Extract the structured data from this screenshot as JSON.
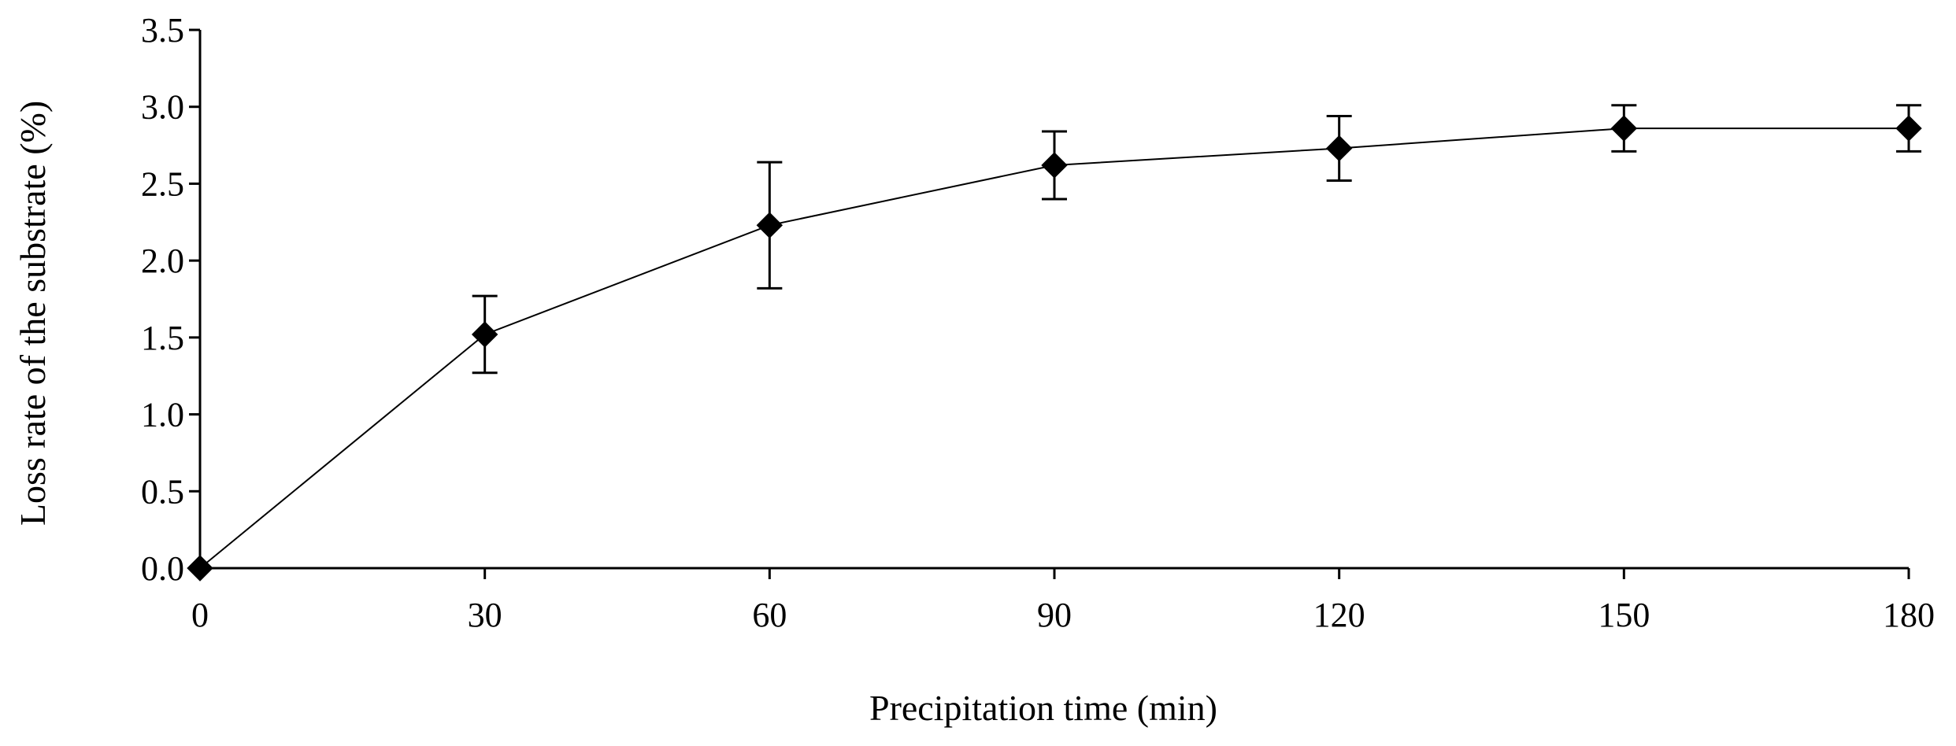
{
  "chart_data": {
    "type": "line",
    "title": "",
    "xlabel": "Precipitation time  (min)",
    "ylabel": "Loss rate of the substrate (%)",
    "xlim": [
      0,
      180
    ],
    "ylim": [
      0,
      3.5
    ],
    "x_ticks": [
      "0",
      "30",
      "60",
      "90",
      "120",
      "150",
      "180"
    ],
    "y_ticks": [
      "0.0",
      "0.5",
      "1.0",
      "1.5",
      "2.0",
      "2.5",
      "3.0",
      "3.5"
    ],
    "grid": false,
    "legend": "none",
    "series": [
      {
        "name": "Loss rate",
        "x": [
          0,
          30,
          60,
          90,
          120,
          150,
          180
        ],
        "y": [
          0.0,
          1.52,
          2.23,
          2.62,
          2.73,
          2.86,
          2.86
        ],
        "error": [
          0.0,
          0.25,
          0.41,
          0.22,
          0.21,
          0.15,
          0.15
        ],
        "marker": "diamond",
        "color": "#000000"
      }
    ]
  }
}
